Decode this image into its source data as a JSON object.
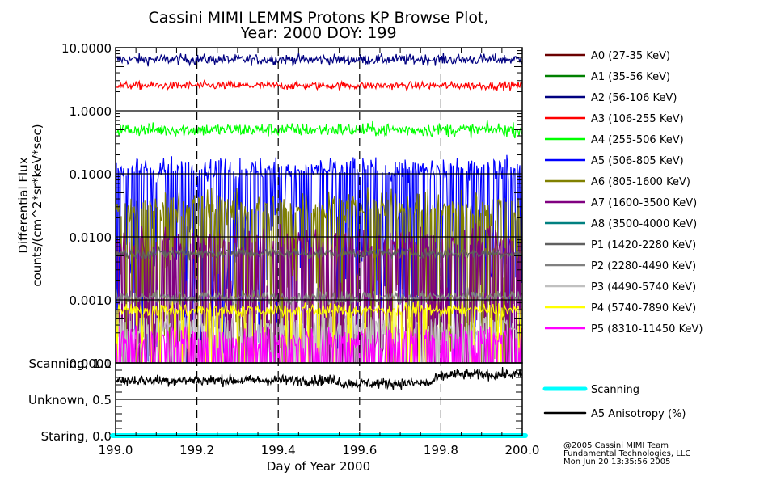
{
  "chart_data": [
    {
      "type": "line",
      "title": "Cassini MIMI LEMMS Protons KP Browse Plot,",
      "subtitle": "Year: 2000 DOY: 199",
      "xlabel": "Day of Year 2000",
      "ylabel": "Differential Flux",
      "ylabel2": "counts/(cm^2*sr*keV*sec)",
      "yscale": "log",
      "ylim": [
        0.0001,
        10.0
      ],
      "xlim": [
        199.0,
        200.0
      ],
      "yticks": [
        10.0,
        1.0,
        0.1,
        0.01,
        0.001,
        0.0001
      ],
      "ytick_labels": [
        "10.0000",
        "1.0000",
        "0.1000",
        "0.0100",
        "0.0010",
        "0.0001"
      ],
      "grid": true,
      "legend": "right",
      "series": [
        {
          "name": "A0 (27-35 KeV)",
          "color": "#6b0000",
          "level": null,
          "noise": 0
        },
        {
          "name": "A1 (35-56 KeV)",
          "color": "#008000",
          "level": null,
          "noise": 0
        },
        {
          "name": "A2 (56-106 KeV)",
          "color": "#000080",
          "level": 6.5,
          "noise": 0.08,
          "dropout": 0
        },
        {
          "name": "A3 (106-255 KeV)",
          "color": "#ff0000",
          "level": 2.5,
          "noise": 0.06,
          "dropout": 0
        },
        {
          "name": "A4 (255-506 KeV)",
          "color": "#00ff00",
          "level": 0.5,
          "noise": 0.1,
          "dropout": 0
        },
        {
          "name": "A5 (506-805 KeV)",
          "color": "#0000ff",
          "level": 0.12,
          "noise": 0.18,
          "dropout": 0.35
        },
        {
          "name": "A6 (805-1600 KeV)",
          "color": "#808000",
          "level": 0.03,
          "noise": 0.25,
          "dropout": 0.4
        },
        {
          "name": "A7 (1600-3500 KeV)",
          "color": "#800080",
          "level": 0.008,
          "noise": 0.25,
          "dropout": 0.5
        },
        {
          "name": "A8 (3500-4000 KeV)",
          "color": "#008080",
          "level": null,
          "noise": 0
        },
        {
          "name": "P1 (1420-2280 KeV)",
          "color": "#606060",
          "level": 0.0055,
          "noise": 0.08,
          "dropout": 0
        },
        {
          "name": "P2 (2280-4490 KeV)",
          "color": "#808080",
          "level": 0.0011,
          "noise": 0.1,
          "dropout": 0
        },
        {
          "name": "P3 (4490-5740 KeV)",
          "color": "#c0c0c0",
          "level": 0.0004,
          "noise": 0.2,
          "dropout": 0.4
        },
        {
          "name": "P4 (5740-7890 KeV)",
          "color": "#ffff00",
          "level": 0.0007,
          "noise": 0.1,
          "dropout": 0.1
        },
        {
          "name": "P5 (8310-11450 KeV)",
          "color": "#ff00ff",
          "level": 0.00025,
          "noise": 0.2,
          "dropout": 0.45
        }
      ]
    },
    {
      "type": "line",
      "xlabel": "Day of Year 2000",
      "xlim": [
        199.0,
        200.0
      ],
      "ylim": [
        0.0,
        1.0
      ],
      "xticks": [
        199.0,
        199.2,
        199.4,
        199.6,
        199.8,
        200.0
      ],
      "xtick_labels": [
        "199.0",
        "199.2",
        "199.4",
        "199.6",
        "199.8",
        "200.0"
      ],
      "ytick_labels": [
        "Scanning, 1.0",
        "Unknown, 0.5",
        "Staring, 0.0"
      ],
      "legend": "right",
      "series": [
        {
          "name": "Scanning",
          "color": "#00ffff",
          "value": 0.0
        },
        {
          "name": "A5 Anisotropy (%)",
          "color": "#000000",
          "level": 0.76,
          "level_end": 0.84
        }
      ]
    }
  ],
  "footer": {
    "line1": "@2005 Cassini MIMI Team",
    "line2": "Fundamental Technologies, LLC",
    "line3": "Mon Jun 20 13:35:56 2005"
  }
}
